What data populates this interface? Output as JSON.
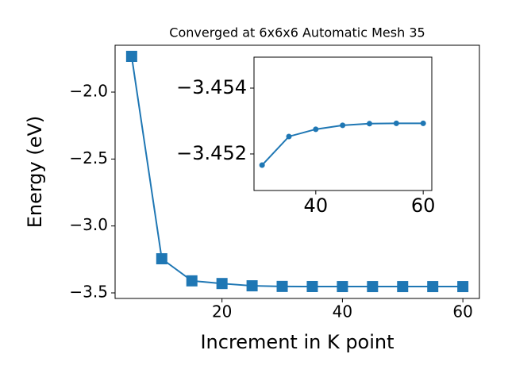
{
  "chart_data": [
    {
      "type": "line",
      "title": "Converged at 6x6x6 Automatic Mesh 35",
      "xlabel": "Increment in K point",
      "ylabel": "Energy (eV)",
      "x": [
        5,
        10,
        15,
        20,
        25,
        30,
        35,
        40,
        45,
        50,
        55,
        60
      ],
      "values": [
        -1.733,
        -3.245,
        -3.41,
        -3.43,
        -3.447,
        -3.4517,
        -3.4525,
        -3.4528,
        -3.4529,
        -3.4529,
        -3.4529,
        -3.4529
      ],
      "color": "#1f77b4",
      "marker": "square",
      "xlim": [
        2.25,
        62.75
      ],
      "xticks": [
        20,
        40,
        60
      ],
      "ylim": [
        -3.5415,
        -1.65
      ],
      "yticks": [
        {
          "value": -3.5,
          "label": "−3.5"
        },
        {
          "value": -3.0,
          "label": "−3.0"
        },
        {
          "value": -2.5,
          "label": "−2.5"
        },
        {
          "value": -2.0,
          "label": "−2.0"
        }
      ]
    },
    {
      "type": "line",
      "x": [
        30,
        35,
        40,
        45,
        50,
        55,
        60
      ],
      "values": [
        -3.45166,
        -3.45253,
        -3.45275,
        -3.45287,
        -3.45292,
        -3.45293,
        -3.45293
      ],
      "color": "#1f77b4",
      "marker": "circle",
      "xlim": [
        28.5,
        61.6
      ],
      "xticks": [
        40,
        60
      ],
      "ylim": [
        -3.45089,
        -3.45494
      ],
      "yticks": [
        {
          "value": -3.452,
          "label": "−3.452"
        },
        {
          "value": -3.454,
          "label": "−3.454"
        }
      ]
    }
  ]
}
